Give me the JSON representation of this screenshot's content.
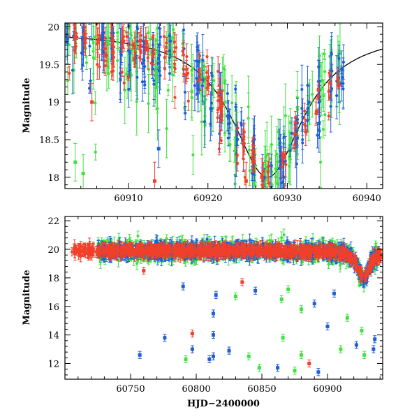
{
  "colors": {
    "blue": "#1f5fd6",
    "green": "#3fe23f",
    "red": "#f0402a",
    "axis": "#000000",
    "model": "#000000"
  },
  "chart_data": [
    {
      "type": "scatter",
      "panel": "top",
      "title": "",
      "xlabel": "",
      "ylabel": "Magnitude",
      "xlim": [
        60902,
        60942
      ],
      "ylim": [
        20.05,
        17.85
      ],
      "y_inverted": true,
      "x_ticks": [
        60910,
        60920,
        60930,
        60940
      ],
      "y_ticks": [
        18,
        18.5,
        19,
        19.5,
        20
      ],
      "y_tick_labels": [
        "18",
        "18.5",
        "19",
        "19.5",
        "20"
      ],
      "model_curve": {
        "description": "smooth peaked light-curve model",
        "t0": 60927.5,
        "peak_mag": 18.0,
        "baseline_mag": 19.95,
        "width_days": 5.5,
        "x_range": [
          60902,
          60942
        ]
      },
      "series": [
        {
          "color_key": "blue",
          "n_points": 230,
          "x_range": [
            60902,
            60937
          ],
          "scatter_mag": 0.45,
          "err_range": [
            0.05,
            0.35
          ]
        },
        {
          "color_key": "green",
          "n_points": 210,
          "x_range": [
            60902,
            60937
          ],
          "scatter_mag": 0.55,
          "err_range": [
            0.05,
            0.45
          ]
        },
        {
          "color_key": "red",
          "n_points": 190,
          "x_range": [
            60902,
            60937
          ],
          "scatter_mag": 0.3,
          "err_range": [
            0.03,
            0.2
          ]
        }
      ],
      "outliers": [
        {
          "x": 60913.3,
          "y": 17.95,
          "color_key": "red"
        },
        {
          "x": 60905.4,
          "y": 19.0,
          "color_key": "red"
        },
        {
          "x": 60913.8,
          "y": 18.38,
          "color_key": "blue"
        },
        {
          "x": 60903.3,
          "y": 18.2,
          "color_key": "green"
        },
        {
          "x": 60904.3,
          "y": 18.05,
          "color_key": "green"
        },
        {
          "x": 60924.8,
          "y": 17.95,
          "color_key": "red"
        },
        {
          "x": 60926.8,
          "y": 18.0,
          "color_key": "red"
        }
      ]
    },
    {
      "type": "scatter",
      "panel": "bottom",
      "title": "",
      "xlabel": "HJD−2400000",
      "ylabel": "Magnitude",
      "xlim": [
        60700,
        60942
      ],
      "ylim": [
        22.3,
        10.9
      ],
      "y_inverted": true,
      "x_ticks": [
        60750,
        60800,
        60850,
        60900
      ],
      "y_ticks": [
        12,
        14,
        16,
        18,
        20,
        22
      ],
      "y_tick_labels": [
        "12",
        "14",
        "16",
        "18",
        "20",
        "22"
      ],
      "baseline_mag": 19.9,
      "flare": {
        "t0": 60927.5,
        "peak_mag": 18.0,
        "width_days": 5.5
      },
      "series": [
        {
          "color_key": "blue",
          "n_points": 900,
          "x_range": [
            60725,
            60940
          ],
          "scatter_mag": 0.55
        },
        {
          "color_key": "green",
          "n_points": 900,
          "x_range": [
            60725,
            60940
          ],
          "scatter_mag": 0.7
        },
        {
          "color_key": "red",
          "n_points": 1100,
          "x_range": [
            60705,
            60940
          ],
          "scatter_mag": 0.3
        }
      ],
      "outliers": [
        {
          "x": 60757,
          "y": 12.6,
          "color_key": "blue"
        },
        {
          "x": 60776,
          "y": 13.8,
          "color_key": "blue"
        },
        {
          "x": 60792,
          "y": 12.3,
          "color_key": "green"
        },
        {
          "x": 60797,
          "y": 13.0,
          "color_key": "blue"
        },
        {
          "x": 60797,
          "y": 14.1,
          "color_key": "red"
        },
        {
          "x": 60810,
          "y": 12.3,
          "color_key": "blue"
        },
        {
          "x": 60813,
          "y": 12.5,
          "color_key": "blue"
        },
        {
          "x": 60813,
          "y": 14.0,
          "color_key": "blue"
        },
        {
          "x": 60813,
          "y": 15.5,
          "color_key": "blue"
        },
        {
          "x": 60825,
          "y": 12.9,
          "color_key": "blue"
        },
        {
          "x": 60840,
          "y": 12.5,
          "color_key": "green"
        },
        {
          "x": 60848,
          "y": 11.7,
          "color_key": "green"
        },
        {
          "x": 60862,
          "y": 11.7,
          "color_key": "blue"
        },
        {
          "x": 60866,
          "y": 13.8,
          "color_key": "green"
        },
        {
          "x": 60875,
          "y": 11.5,
          "color_key": "green"
        },
        {
          "x": 60880,
          "y": 12.6,
          "color_key": "green"
        },
        {
          "x": 60886,
          "y": 12.0,
          "color_key": "red"
        },
        {
          "x": 60893,
          "y": 11.4,
          "color_key": "blue"
        },
        {
          "x": 60900,
          "y": 14.6,
          "color_key": "blue"
        },
        {
          "x": 60910,
          "y": 13.0,
          "color_key": "green"
        },
        {
          "x": 60922,
          "y": 13.3,
          "color_key": "blue"
        },
        {
          "x": 60926,
          "y": 14.3,
          "color_key": "green"
        },
        {
          "x": 60928,
          "y": 12.6,
          "color_key": "green"
        },
        {
          "x": 60935,
          "y": 13.0,
          "color_key": "blue"
        },
        {
          "x": 60936,
          "y": 13.7,
          "color_key": "blue"
        },
        {
          "x": 60760,
          "y": 18.5,
          "color_key": "red"
        },
        {
          "x": 60835,
          "y": 17.7,
          "color_key": "red"
        },
        {
          "x": 60790,
          "y": 17.4,
          "color_key": "blue"
        },
        {
          "x": 60815,
          "y": 16.8,
          "color_key": "blue"
        },
        {
          "x": 60865,
          "y": 16.5,
          "color_key": "green"
        },
        {
          "x": 60890,
          "y": 16.2,
          "color_key": "blue"
        },
        {
          "x": 60905,
          "y": 16.9,
          "color_key": "blue"
        },
        {
          "x": 60830,
          "y": 16.7,
          "color_key": "green"
        },
        {
          "x": 60845,
          "y": 17.1,
          "color_key": "blue"
        },
        {
          "x": 60870,
          "y": 17.2,
          "color_key": "green"
        },
        {
          "x": 60880,
          "y": 15.8,
          "color_key": "green"
        },
        {
          "x": 60915,
          "y": 15.2,
          "color_key": "green"
        }
      ]
    }
  ]
}
